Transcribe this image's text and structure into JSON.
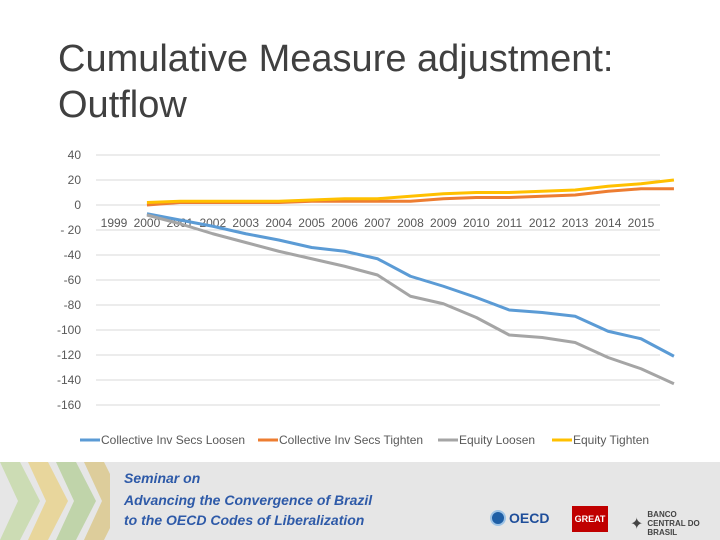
{
  "title": "Cumulative Measure adjustment: Outflow",
  "chart_data": {
    "type": "line",
    "categories": [
      "1999",
      "2000",
      "2001",
      "2002",
      "2003",
      "2004",
      "2005",
      "2006",
      "2007",
      "2008",
      "2009",
      "2010",
      "2011",
      "2012",
      "2013",
      "2014",
      "2015"
    ],
    "ylim": [
      -160,
      40
    ],
    "yticks": [
      40,
      20,
      0,
      -20,
      -40,
      -60,
      -80,
      -100,
      -120,
      -140,
      -160
    ],
    "ytick_labels": [
      "40",
      "20",
      "0",
      "- 20",
      "-40",
      "-60",
      "-80",
      "-100",
      "-120",
      "-140",
      "-160"
    ],
    "grid": true,
    "legend_position": "bottom",
    "series": [
      {
        "name": "Collective Inv Secs Loosen",
        "color": "#5b9bd5",
        "values": [
          -7,
          -12,
          -17,
          -23,
          -28,
          -34,
          -37,
          -43,
          -57,
          -65,
          -74,
          -84,
          -86,
          -89,
          -101,
          -107,
          -121
        ]
      },
      {
        "name": "Collective Inv Secs Tighten",
        "color": "#ed7d31",
        "values": [
          0,
          2,
          2,
          2,
          2,
          3,
          3,
          3,
          3,
          5,
          6,
          6,
          7,
          8,
          11,
          13,
          13
        ]
      },
      {
        "name": "Equity  Loosen",
        "color": "#a5a5a5",
        "values": [
          -8,
          -15,
          -23,
          -30,
          -37,
          -43,
          -49,
          -56,
          -73,
          -79,
          -90,
          -104,
          -106,
          -110,
          -122,
          -131,
          -143
        ]
      },
      {
        "name": "Equity  Tighten",
        "color": "#ffc000",
        "values": [
          2,
          3,
          3,
          3,
          3,
          4,
          5,
          5,
          7,
          9,
          10,
          10,
          11,
          12,
          15,
          17,
          20
        ]
      }
    ]
  },
  "banner": {
    "seminar": "Seminar on",
    "line1": "Advancing the Convergence of Brazil",
    "line2": "to the OECD Codes of Liberalization",
    "oecd": "OECD",
    "great": "GREAT",
    "bcb": "BANCO CENTRAL DO BRASIL"
  }
}
